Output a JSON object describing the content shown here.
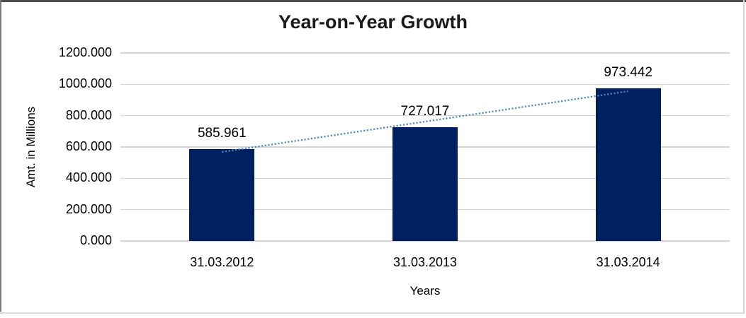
{
  "chart_data": {
    "type": "bar",
    "title": "Year-on-Year Growth",
    "xlabel": "Years",
    "ylabel": "Amt. in Millions",
    "categories": [
      "31.03.2012",
      "31.03.2013",
      "31.03.2014"
    ],
    "values": [
      585.961,
      727.017,
      973.442
    ],
    "value_labels": [
      "585.961",
      "727.017",
      "973.442"
    ],
    "ylim": [
      0,
      1200
    ],
    "ytick_step": 200,
    "ytick_labels": [
      "0.000",
      "200.000",
      "400.000",
      "600.000",
      "800.000",
      "1000.000",
      "1200.000"
    ],
    "grid": true,
    "legend_position": "none",
    "bar_color": "#002060",
    "gridline_color": "#d6d6d6",
    "trendline": {
      "type": "linear",
      "style": "dotted",
      "color": "#4a86c8"
    }
  }
}
